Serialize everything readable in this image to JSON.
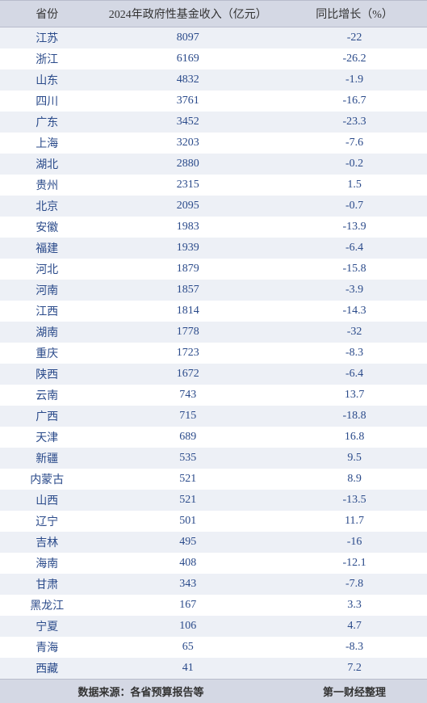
{
  "columns": [
    {
      "label": "省份",
      "class": "col1"
    },
    {
      "label": "2024年政府性基金收入（亿元）",
      "class": "col2"
    },
    {
      "label": "同比增长（%）",
      "class": "col3"
    }
  ],
  "rows": [
    [
      "江苏",
      "8097",
      "-22"
    ],
    [
      "浙江",
      "6169",
      "-26.2"
    ],
    [
      "山东",
      "4832",
      "-1.9"
    ],
    [
      "四川",
      "3761",
      "-16.7"
    ],
    [
      "广东",
      "3452",
      "-23.3"
    ],
    [
      "上海",
      "3203",
      "-7.6"
    ],
    [
      "湖北",
      "2880",
      "-0.2"
    ],
    [
      "贵州",
      "2315",
      "1.5"
    ],
    [
      "北京",
      "2095",
      "-0.7"
    ],
    [
      "安徽",
      "1983",
      "-13.9"
    ],
    [
      "福建",
      "1939",
      "-6.4"
    ],
    [
      "河北",
      "1879",
      "-15.8"
    ],
    [
      "河南",
      "1857",
      "-3.9"
    ],
    [
      "江西",
      "1814",
      "-14.3"
    ],
    [
      "湖南",
      "1778",
      "-32"
    ],
    [
      "重庆",
      "1723",
      "-8.3"
    ],
    [
      "陕西",
      "1672",
      "-6.4"
    ],
    [
      "云南",
      "743",
      "13.7"
    ],
    [
      "广西",
      "715",
      "-18.8"
    ],
    [
      "天津",
      "689",
      "16.8"
    ],
    [
      "新疆",
      "535",
      "9.5"
    ],
    [
      "内蒙古",
      "521",
      "8.9"
    ],
    [
      "山西",
      "521",
      "-13.5"
    ],
    [
      "辽宁",
      "501",
      "11.7"
    ],
    [
      "吉林",
      "495",
      "-16"
    ],
    [
      "海南",
      "408",
      "-12.1"
    ],
    [
      "甘肃",
      "343",
      "-7.8"
    ],
    [
      "黑龙江",
      "167",
      "3.3"
    ],
    [
      "宁夏",
      "106",
      "4.7"
    ],
    [
      "青海",
      "65",
      "-8.3"
    ],
    [
      "西藏",
      "41",
      "7.2"
    ]
  ],
  "footer": {
    "source_label": "数据来源：各省预算报告等",
    "compiler": "第一财经整理"
  },
  "styling": {
    "header_bg": "#d4d8e4",
    "odd_row_bg": "#edf0f6",
    "even_row_bg": "#ffffff",
    "text_color": "#2a4a8a",
    "header_text_color": "#333",
    "font_family": "SimSun",
    "font_size": 14
  }
}
